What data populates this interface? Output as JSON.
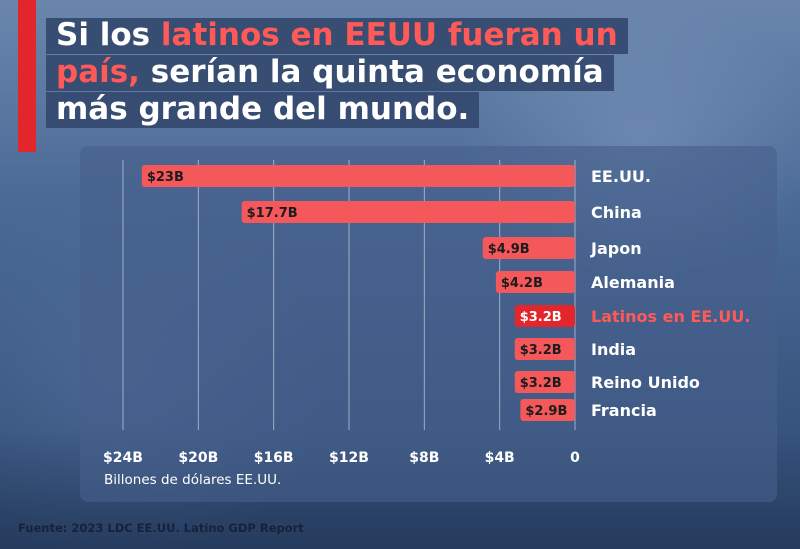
{
  "title": {
    "line1_a": "Si los ",
    "line1_b": "latinos en EEUU fueran un",
    "line2_a": "país,",
    "line2_b": " serían la quinta economía",
    "line3": "más grande del mundo."
  },
  "colors": {
    "bar": "#f4585a",
    "bar_highlight": "#e3262b",
    "label": "#ffffff",
    "label_highlight": "#ff5a57",
    "value_text": "#1c1c1c",
    "value_text_highlight": "#ffffff"
  },
  "chart_data": {
    "type": "bar",
    "orientation": "horizontal",
    "direction": "right-to-left",
    "categories": [
      "EE.UU.",
      "China",
      "Japon",
      "Alemania",
      "Latinos en EE.UU.",
      "India",
      "Reino Unido",
      "Francia"
    ],
    "values": [
      23,
      17.7,
      4.9,
      4.2,
      3.2,
      3.2,
      3.2,
      2.9
    ],
    "value_labels": [
      "$23B",
      "$17.7B",
      "$4.9B",
      "$4.2B",
      "$3.2B",
      "$3.2B",
      "$3.2B",
      "$2.9B"
    ],
    "highlight_index": 4,
    "xlim": [
      0,
      24
    ],
    "xticks": [
      24,
      20,
      16,
      12,
      8,
      4,
      0
    ],
    "xtick_labels": [
      "$24B",
      "$20B",
      "$16B",
      "$12B",
      "$8B",
      "$4B",
      "0"
    ],
    "xlabel": "Billones de dólares EE.UU.",
    "grid": true
  },
  "source": "Fuente: 2023 LDC EE.UU. Latino GDP Report"
}
